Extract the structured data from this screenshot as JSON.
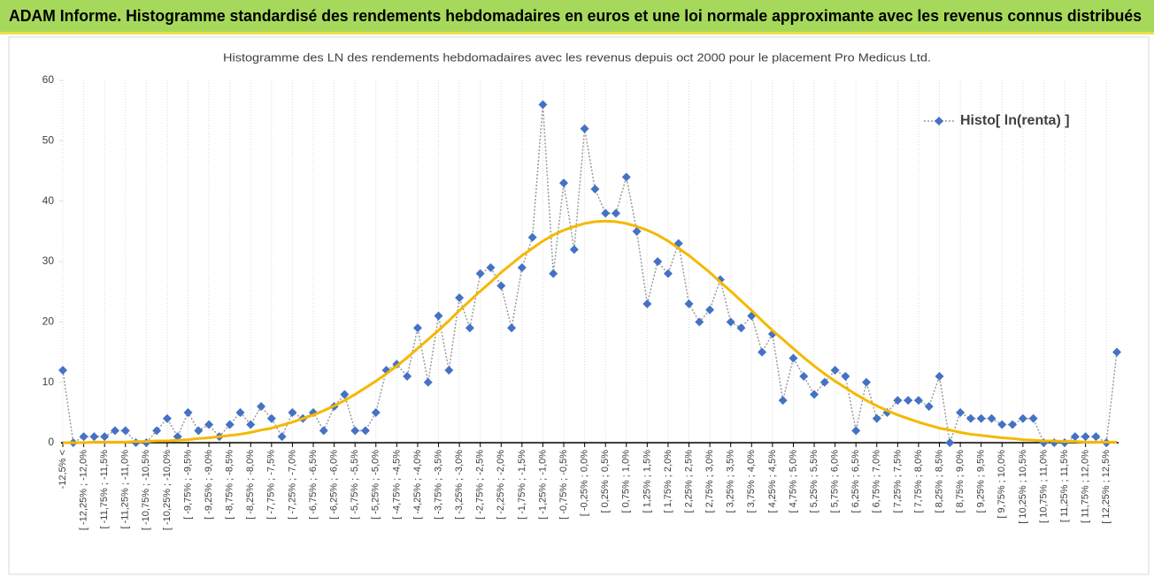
{
  "header": {
    "title": "ADAM Informe. Histogramme standardisé des rendements hebdomadaires en euros et une loi normale approximante avec les revenus connus distribués"
  },
  "chart_data": {
    "type": "line",
    "title": "Histogramme des LN des rendements hebdomadaires avec les revenus depuis oct 2000 pour le placement Pro Medicus Ltd.",
    "categories": [
      "-12,5% <",
      null,
      "[ -12,25% ; -12,0%",
      null,
      "[ -11,75% ; -11,5%",
      null,
      "[ -11,25% ; -11,0%",
      null,
      "[ -10,75% ; -10,5%",
      null,
      "[ -10,25% ; -10,0%",
      null,
      "[ -9,75% ; -9,5%",
      null,
      "[ -9,25% ; -9,0%",
      null,
      "[ -8,75% ; -8,5%",
      null,
      "[ -8,25% ; -8,0%",
      null,
      "[ -7,75% ; -7,5%",
      null,
      "[ -7,25% ; -7,0%",
      null,
      "[ -6,75% ; -6,5%",
      null,
      "[ -6,25% ; -6,0%",
      null,
      "[ -5,75% ; -5,5%",
      null,
      "[ -5,25% ; -5,0%",
      null,
      "[ -4,75% ; -4,5%",
      null,
      "[ -4,25% ; -4,0%",
      null,
      "[ -3,75% ; -3,5%",
      null,
      "[ -3,25% ; -3,0%",
      null,
      "[ -2,75% ; -2,5%",
      null,
      "[ -2,25% ; -2,0%",
      null,
      "[ -1,75% ; -1,5%",
      null,
      "[ -1,25% ; -1,0%",
      null,
      "[ -0,75% ; -0,5%",
      null,
      "[ -0,25% ; 0,0%",
      null,
      "[ 0,25% ; 0,5%",
      null,
      "[ 0,75% ; 1,0%",
      null,
      "[ 1,25% ; 1,5%",
      null,
      "[ 1,75% ; 2,0%",
      null,
      "[ 2,25% ; 2,5%",
      null,
      "[ 2,75% ; 3,0%",
      null,
      "[ 3,25% ; 3,5%",
      null,
      "[ 3,75% ; 4,0%",
      null,
      "[ 4,25% ; 4,5%",
      null,
      "[ 4,75% ; 5,0%",
      null,
      "[ 5,25% ; 5,5%",
      null,
      "[ 5,75% ; 6,0%",
      null,
      "[ 6,25% ; 6,5%",
      null,
      "[ 6,75% ; 7,0%",
      null,
      "[ 7,25% ; 7,5%",
      null,
      "[ 7,75% ; 8,0%",
      null,
      "[ 8,25% ; 8,5%",
      null,
      "[ 8,75% ; 9,0%",
      null,
      "[ 9,25% ; 9,5%",
      null,
      "[ 9,75% ; 10,0%",
      null,
      "[ 10,25% ; 10,5%",
      null,
      "[ 10,75% ; 11,0%",
      null,
      "[ 11,25% ; 11,5%",
      null,
      "[ 11,75% ; 12,0%",
      null,
      "[ 12,25% ; 12,5%",
      null
    ],
    "series": [
      {
        "name": "Histo[ ln(renta) ]",
        "color": "#4472c4",
        "values": [
          12,
          0,
          1,
          1,
          1,
          2,
          2,
          0,
          0,
          2,
          4,
          1,
          5,
          2,
          3,
          1,
          3,
          5,
          3,
          6,
          4,
          1,
          5,
          4,
          5,
          2,
          6,
          8,
          2,
          2,
          5,
          12,
          13,
          11,
          19,
          10,
          21,
          12,
          24,
          19,
          28,
          29,
          26,
          19,
          29,
          34,
          56,
          28,
          43,
          32,
          52,
          42,
          38,
          38,
          44,
          35,
          23,
          30,
          28,
          33,
          23,
          20,
          22,
          27,
          20,
          19,
          21,
          15,
          18,
          7,
          14,
          11,
          8,
          10,
          12,
          11,
          2,
          10,
          4,
          5,
          7,
          7,
          7,
          6,
          11,
          0,
          5,
          4,
          4,
          4,
          3,
          3,
          4,
          4,
          0,
          0,
          0,
          1,
          1,
          1,
          0,
          15
        ]
      },
      {
        "color": "#f5b800",
        "values": [
          0.0,
          0.0,
          0.0,
          0.1,
          0.1,
          0.1,
          0.1,
          0.2,
          0.2,
          0.3,
          0.3,
          0.4,
          0.5,
          0.7,
          0.8,
          1.0,
          1.2,
          1.4,
          1.7,
          2.1,
          2.4,
          2.9,
          3.4,
          4.0,
          4.6,
          5.3,
          6.1,
          7.0,
          8.0,
          9.1,
          10.2,
          11.4,
          12.7,
          14.1,
          15.6,
          17.1,
          18.6,
          20.2,
          21.9,
          23.5,
          25.1,
          26.6,
          28.2,
          29.6,
          31.0,
          32.2,
          33.4,
          34.4,
          35.2,
          35.8,
          36.3,
          36.6,
          36.7,
          36.6,
          36.3,
          35.8,
          35.2,
          34.4,
          33.4,
          32.2,
          31.0,
          29.6,
          28.2,
          26.6,
          25.1,
          23.5,
          21.9,
          20.2,
          18.6,
          17.1,
          15.6,
          14.1,
          12.7,
          11.4,
          10.2,
          9.1,
          8.0,
          7.0,
          6.1,
          5.3,
          4.6,
          4.0,
          3.4,
          2.9,
          2.4,
          2.1,
          1.7,
          1.4,
          1.2,
          1.0,
          0.8,
          0.7,
          0.5,
          0.4,
          0.3,
          0.3,
          0.2,
          0.2,
          0.1,
          0.1,
          0.1,
          0.1
        ]
      }
    ],
    "ylim": [
      0,
      60
    ],
    "yticks": [
      0,
      10,
      20,
      30,
      40,
      50,
      60
    ],
    "legend": "upper right"
  }
}
